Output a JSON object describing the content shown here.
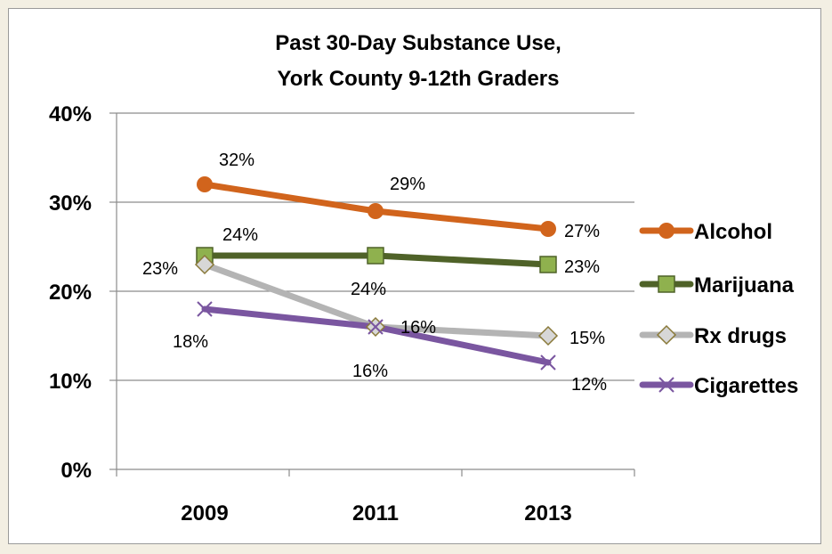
{
  "chart_data": {
    "type": "line",
    "title_lines": [
      "Past 30-Day Substance Use,",
      "York County 9-12th Graders"
    ],
    "x": [
      "2009",
      "2011",
      "2013"
    ],
    "ylim": [
      0,
      40
    ],
    "yticks": [
      "0%",
      "10%",
      "20%",
      "30%",
      "40%"
    ],
    "grid": true,
    "legend_position": "right",
    "series": [
      {
        "name": "Alcohol",
        "values": [
          32,
          29,
          27
        ],
        "labels": [
          "32%",
          "29%",
          "27%"
        ],
        "color": "#d1641c",
        "marker": "circle"
      },
      {
        "name": "Marijuana",
        "values": [
          24,
          24,
          23
        ],
        "labels": [
          "24%",
          "24%",
          "23%"
        ],
        "color": "#4f6228",
        "marker": "square"
      },
      {
        "name": "Rx drugs",
        "values": [
          23,
          16,
          15
        ],
        "labels": [
          "23%",
          "16%",
          "15%"
        ],
        "color": "#b4b4b4",
        "marker": "diamond"
      },
      {
        "name": "Cigarettes",
        "values": [
          18,
          16,
          12
        ],
        "labels": [
          "18%",
          "16%",
          "12%"
        ],
        "color": "#7a56a0",
        "marker": "x"
      }
    ]
  }
}
